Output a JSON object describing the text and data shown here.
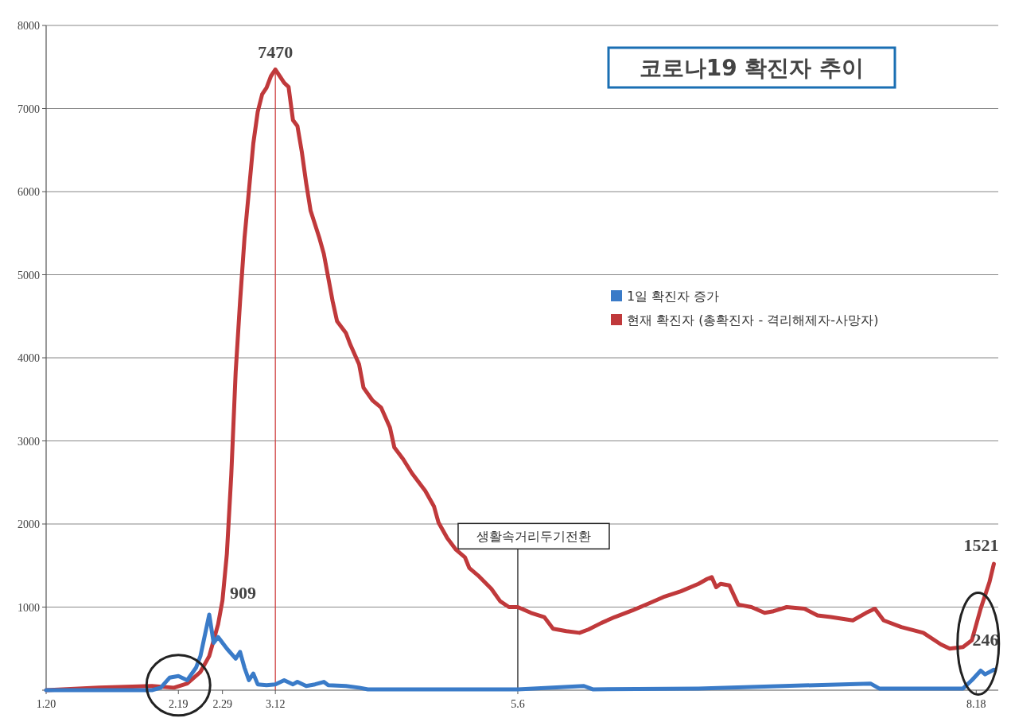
{
  "chart_data": {
    "type": "line",
    "title": "코로나19 확진자 추이",
    "xlim": [
      "--01-20",
      "--08-23"
    ],
    "xticks": [
      {
        "value": "--01-20",
        "label": "1.20"
      },
      {
        "value": "--02-19",
        "label": "2.19"
      },
      {
        "value": "--02-29",
        "label": "2.29"
      },
      {
        "value": "--03-12",
        "label": "3.12"
      },
      {
        "value": "--05-06",
        "label": "5.6"
      },
      {
        "value": "--08-18",
        "label": "8.18"
      }
    ],
    "ylim": [
      0,
      8000
    ],
    "yticks": [
      {
        "value": 0,
        "label": null
      },
      1000,
      2000,
      3000,
      4000,
      5000,
      6000,
      7000,
      8000
    ],
    "grid": "y",
    "legend": "right",
    "series": [
      {
        "name": "1일 확진자 증가",
        "color": "#3a7bc8",
        "x": [
          "--01-20",
          "--02-13",
          "--02-15",
          "--02-17",
          "--02-19",
          "--02-21",
          "--02-23",
          "--02-24",
          "--02-26",
          "--02-27",
          "--02-28",
          "--03-01",
          "--03-03",
          "--03-04",
          "--03-05",
          "--03-06",
          "--03-07",
          "--03-08",
          "--03-10",
          "--03-12",
          "--03-14",
          "--03-16",
          "--03-17",
          "--03-19",
          "--03-21",
          "--03-23",
          "--03-24",
          "--03-28",
          "--03-31",
          "--04-02",
          "--04-24",
          "--05-06",
          "--05-21",
          "--05-23",
          "--06-16",
          "--07-25",
          "--07-27",
          "--08-15",
          "--08-17",
          "--08-19",
          "--08-20",
          "--08-22"
        ],
        "values": [
          0,
          0,
          30,
          150,
          170,
          120,
          270,
          410,
          909,
          570,
          640,
          500,
          380,
          460,
          270,
          120,
          200,
          70,
          60,
          70,
          120,
          70,
          100,
          50,
          70,
          100,
          60,
          50,
          30,
          10,
          10,
          10,
          50,
          10,
          20,
          80,
          20,
          20,
          120,
          235,
          190,
          246
        ]
      },
      {
        "name": "현재 확진자 (총확진자 - 격리해제자-사망자)",
        "color": "#c0393b",
        "x": [
          "--01-20",
          "--02-01",
          "--02-13",
          "--02-18",
          "--02-21",
          "--02-24",
          "--02-26",
          "--02-28",
          "--02-29",
          "--03-01",
          "--03-02",
          "--03-03",
          "--03-04",
          "--03-05",
          "--03-06",
          "--03-07",
          "--03-08",
          "--03-09",
          "--03-10",
          "--03-11",
          "--03-12",
          "--03-13",
          "--03-14",
          "--03-15",
          "--03-16",
          "--03-17",
          "--03-18",
          "--03-19",
          "--03-20",
          "--03-22",
          "--03-23",
          "--03-25",
          "--03-26",
          "--03-28",
          "--03-29",
          "--03-31",
          "--04-01",
          "--04-03",
          "--04-05",
          "--04-07",
          "--04-08",
          "--04-10",
          "--04-12",
          "--04-15",
          "--04-17",
          "--04-18",
          "--04-20",
          "--04-22",
          "--04-24",
          "--04-25",
          "--04-27",
          "--04-30",
          "--05-02",
          "--05-04",
          "--05-06",
          "--05-09",
          "--05-12",
          "--05-14",
          "--05-17",
          "--05-20",
          "--05-22",
          "--05-25",
          "--05-28",
          "--06-01",
          "--06-05",
          "--06-08",
          "--06-12",
          "--06-16",
          "--06-18",
          "--06-19",
          "--06-20",
          "--06-21",
          "--06-23",
          "--06-25",
          "--06-28",
          "--07-01",
          "--07-03",
          "--07-06",
          "--07-10",
          "--07-13",
          "--07-16",
          "--07-21",
          "--07-24",
          "--07-26",
          "--07-28",
          "--08-01",
          "--08-06",
          "--08-10",
          "--08-12",
          "--08-15",
          "--08-17",
          "--08-19",
          "--08-21",
          "--08-22"
        ],
        "values": [
          0,
          30,
          50,
          30,
          80,
          220,
          410,
          790,
          1080,
          1640,
          2590,
          3830,
          4680,
          5440,
          6010,
          6580,
          6960,
          7170,
          7250,
          7390,
          7470,
          7390,
          7310,
          7260,
          6860,
          6790,
          6480,
          6100,
          5770,
          5440,
          5250,
          4680,
          4440,
          4300,
          4160,
          3920,
          3640,
          3490,
          3400,
          3160,
          2920,
          2780,
          2610,
          2400,
          2210,
          2020,
          1830,
          1690,
          1600,
          1470,
          1380,
          1220,
          1070,
          1000,
          1000,
          930,
          880,
          740,
          710,
          690,
          730,
          810,
          880,
          960,
          1050,
          1120,
          1190,
          1280,
          1340,
          1360,
          1240,
          1280,
          1260,
          1030,
          1000,
          930,
          950,
          1000,
          980,
          900,
          880,
          840,
          930,
          980,
          840,
          760,
          690,
          550,
          500,
          520,
          600,
          980,
          1300,
          1521
        ]
      }
    ],
    "annotations": [
      {
        "text": "7470",
        "x": "--03-12",
        "y": 7470
      },
      {
        "text": "909",
        "x": "--02-26",
        "y": 909
      },
      {
        "text": "1521",
        "x": "--08-22",
        "y": 1521
      },
      {
        "text": "246",
        "x": "--08-22",
        "y": 246
      }
    ],
    "ref_lines": [
      {
        "axis": "x",
        "value": "--03-12",
        "color": "#d04040"
      },
      {
        "axis": "x",
        "value": "--05-06",
        "label": "생활속거리두기전환",
        "color": "#222222"
      }
    ]
  }
}
